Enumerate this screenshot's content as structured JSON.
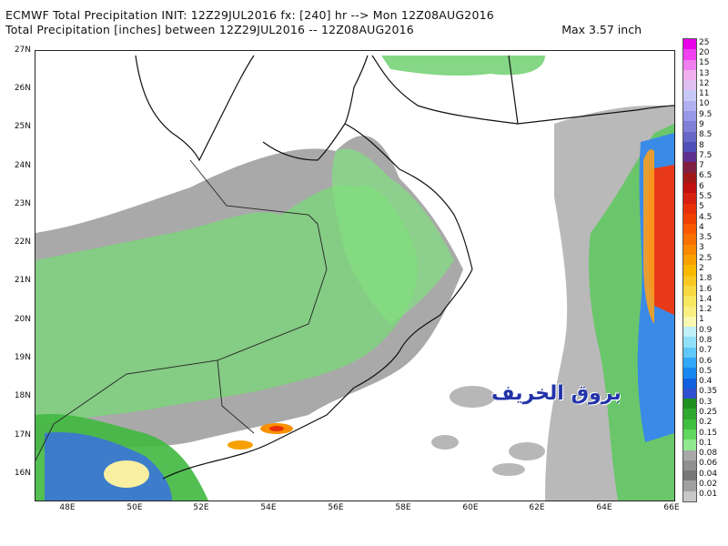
{
  "header": {
    "line1": "ECMWF Total Precipitation INIT: 12Z29JUL2016 fx: [240] hr --> Mon 12Z08AUG2016",
    "line2": "Total Precipitation [inches] between 12Z29JUL2016 -- 12Z08AUG2016",
    "max": "Max 3.57 inch"
  },
  "map": {
    "region": "Arabian Peninsula / Oman / Arabian Sea",
    "lat_labels": [
      "27N",
      "26N",
      "25N",
      "24N",
      "23N",
      "22N",
      "21N",
      "20N",
      "19N",
      "18N",
      "17N",
      "16N"
    ],
    "lon_labels": [
      "48E",
      "50E",
      "52E",
      "54E",
      "56E",
      "58E",
      "60E",
      "62E",
      "64E",
      "66E"
    ],
    "watermark": "بروق الخريف"
  },
  "legend": {
    "levels": [
      "25",
      "20",
      "15",
      "13",
      "12",
      "11",
      "10",
      "9.5",
      "9",
      "8.5",
      "8",
      "7.5",
      "7",
      "6.5",
      "6",
      "5.5",
      "5",
      "4.5",
      "4",
      "3.5",
      "3",
      "2.5",
      "2",
      "1.8",
      "1.6",
      "1.4",
      "1.2",
      "1",
      "0.9",
      "0.8",
      "0.7",
      "0.6",
      "0.5",
      "0.4",
      "0.35",
      "0.3",
      "0.25",
      "0.2",
      "0.15",
      "0.1",
      "0.08",
      "0.06",
      "0.04",
      "0.02",
      "0.01"
    ],
    "colors": [
      "#e800e8",
      "#f040f0",
      "#f080f0",
      "#f0b0f0",
      "#e0c0f0",
      "#c8c8f8",
      "#b0b0f0",
      "#9898e8",
      "#8080d8",
      "#6868c8",
      "#5050b8",
      "#603090",
      "#802040",
      "#a01818",
      "#c01010",
      "#d82010",
      "#e83008",
      "#f04000",
      "#f85800",
      "#f87000",
      "#f88800",
      "#f8a000",
      "#f8b800",
      "#f8c820",
      "#f8d840",
      "#f8e860",
      "#f8f080",
      "#f8f8b0",
      "#c0f0f8",
      "#90e0f8",
      "#60c8f8",
      "#30a8f8",
      "#1888f0",
      "#1060e0",
      "#3050d0",
      "#209020",
      "#30a830",
      "#40c040",
      "#60d860",
      "#90e890",
      "#a8a8a8",
      "#909090",
      "#787878",
      "#a0a0a0",
      "#c8c8c8"
    ]
  }
}
